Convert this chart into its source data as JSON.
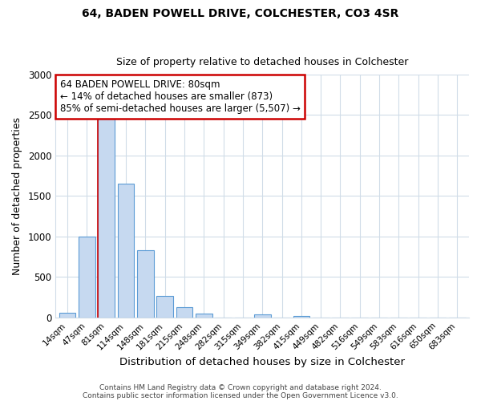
{
  "title": "64, BADEN POWELL DRIVE, COLCHESTER, CO3 4SR",
  "subtitle": "Size of property relative to detached houses in Colchester",
  "xlabel": "Distribution of detached houses by size in Colchester",
  "ylabel": "Number of detached properties",
  "bar_labels": [
    "14sqm",
    "47sqm",
    "81sqm",
    "114sqm",
    "148sqm",
    "181sqm",
    "215sqm",
    "248sqm",
    "282sqm",
    "315sqm",
    "349sqm",
    "382sqm",
    "415sqm",
    "449sqm",
    "482sqm",
    "516sqm",
    "549sqm",
    "583sqm",
    "616sqm",
    "650sqm",
    "683sqm"
  ],
  "bar_values": [
    55,
    1000,
    2470,
    1650,
    830,
    270,
    125,
    50,
    0,
    0,
    35,
    0,
    15,
    0,
    0,
    0,
    0,
    0,
    0,
    0,
    0
  ],
  "bar_color": "#c6d9f0",
  "bar_edge_color": "#5b9bd5",
  "ylim": [
    0,
    3000
  ],
  "yticks": [
    0,
    500,
    1000,
    1500,
    2000,
    2500,
    3000
  ],
  "vline_index": 2,
  "annotation_title": "64 BADEN POWELL DRIVE: 80sqm",
  "annotation_line1": "← 14% of detached houses are smaller (873)",
  "annotation_line2": "85% of semi-detached houses are larger (5,507) →",
  "annotation_box_color": "#ffffff",
  "annotation_box_edge": "#cc0000",
  "vline_color": "#cc0000",
  "footer1": "Contains HM Land Registry data © Crown copyright and database right 2024.",
  "footer2": "Contains public sector information licensed under the Open Government Licence v3.0.",
  "background_color": "#ffffff",
  "grid_color": "#d0dce8",
  "title_fontsize": 10,
  "subtitle_fontsize": 9
}
